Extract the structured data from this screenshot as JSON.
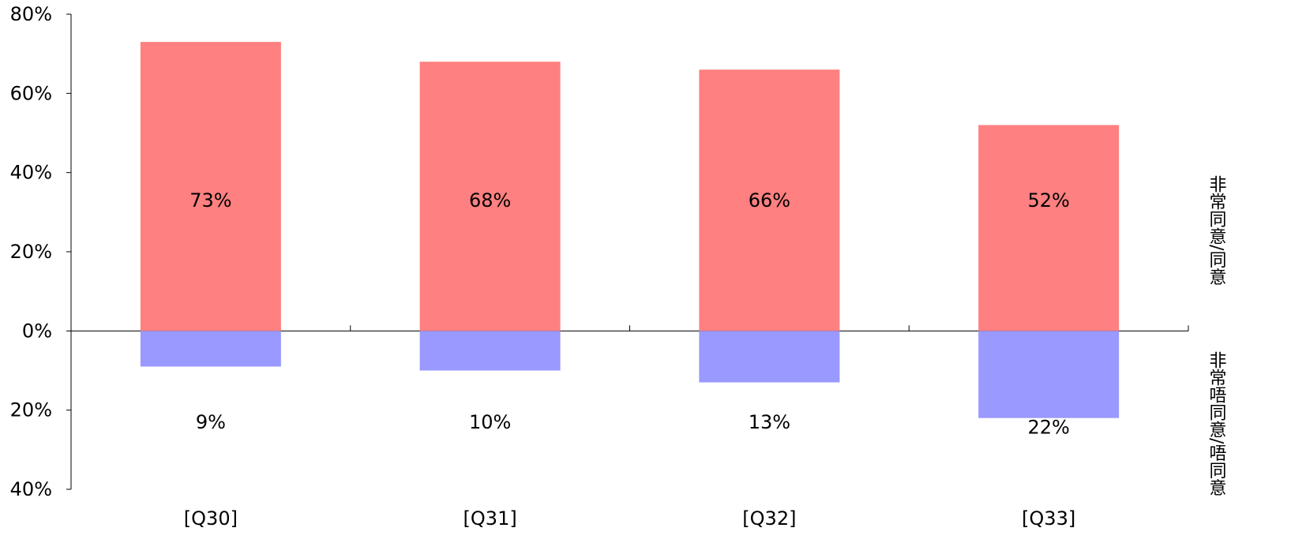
{
  "chart_data": {
    "type": "bar",
    "categories": [
      "[Q30]",
      "[Q31]",
      "[Q32]",
      "[Q33]"
    ],
    "series": [
      {
        "name": "非常同意/同意",
        "values": [
          73,
          68,
          66,
          52
        ],
        "value_labels": [
          "73%",
          "68%",
          "66%",
          "52%"
        ],
        "color": "#ff8080",
        "direction": "up"
      },
      {
        "name": "非常唔同意/唔同意",
        "values": [
          9,
          10,
          13,
          22
        ],
        "value_labels": [
          "9%",
          "10%",
          "13%",
          "22%"
        ],
        "color": "#9999ff",
        "direction": "down"
      }
    ],
    "ylim": [
      -40,
      80
    ],
    "y_ticks": [
      80,
      60,
      40,
      20,
      0,
      -20,
      -40
    ],
    "y_tick_labels": [
      "80%",
      "60%",
      "40%",
      "20%",
      "0%",
      "20%",
      "40%"
    ],
    "grid": false,
    "legend": "right"
  }
}
